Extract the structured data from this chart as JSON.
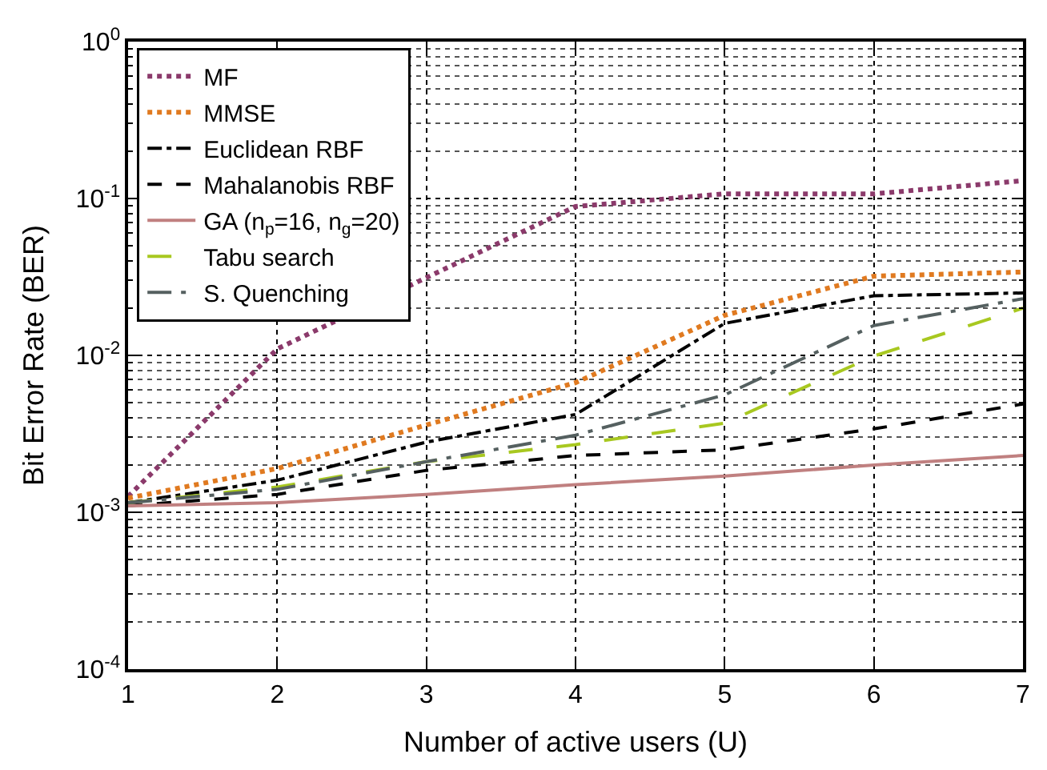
{
  "chart_data": {
    "type": "line",
    "xlabel": "Number of active users (U)",
    "ylabel": "Bit Error Rate (BER)",
    "x": [
      1,
      2,
      3,
      4,
      5,
      6,
      7
    ],
    "series": [
      {
        "name": "MF",
        "color": "#8b3a6b",
        "line_style": "dotted",
        "values": [
          0.00126,
          0.011,
          null,
          0.089,
          0.107,
          0.107,
          0.13
        ]
      },
      {
        "name": "MMSE",
        "color": "#e07a20",
        "line_style": "dotted",
        "values": [
          0.00123,
          0.0019,
          0.0036,
          0.0067,
          0.018,
          0.032,
          0.034
        ]
      },
      {
        "name": "Euclidean RBF",
        "color": "#000000",
        "line_style": "dashdot",
        "values": [
          0.00115,
          0.0016,
          0.0028,
          0.0042,
          0.016,
          0.024,
          0.025
        ]
      },
      {
        "name": "Mahalanobis RBF",
        "color": "#000000",
        "line_style": "dashed",
        "values": [
          0.0011,
          0.0013,
          0.00185,
          0.0023,
          0.0025,
          0.0034,
          0.0049
        ]
      },
      {
        "name": "GA (n$_{p}$=16, n$_{g}$=20)",
        "color": "#c08080",
        "line_style": "solid",
        "values": [
          0.0011,
          0.00115,
          0.0013,
          0.0015,
          0.0017,
          0.002,
          0.0023
        ]
      },
      {
        "name": "Tabu search",
        "color": "#a8c820",
        "line_style": "longdash",
        "values": [
          0.00115,
          0.00145,
          0.0021,
          0.0027,
          0.0037,
          0.0099,
          0.02
        ]
      },
      {
        "name": "S. Quenching",
        "color": "#556060",
        "line_style": "longdashdot",
        "values": [
          0.00115,
          0.0014,
          0.0021,
          0.0031,
          0.0056,
          0.0155,
          0.023
        ]
      }
    ],
    "log": "y",
    "xlim": [
      1,
      7
    ],
    "xticks": [
      1,
      2,
      3,
      4,
      5,
      6,
      7
    ],
    "ylim": [
      0.0001,
      1
    ],
    "yticks": [
      {
        "value": 0.0001,
        "label": "10$^{-4}$"
      },
      {
        "value": 0.001,
        "label": "10$^{-3}$"
      },
      {
        "value": 0.01,
        "label": "10$^{-2}$"
      },
      {
        "value": 0.1,
        "label": "10$^{-1}$"
      },
      {
        "value": 1,
        "label": "10$^{0}$"
      }
    ],
    "grid": true,
    "legend": "top left",
    "marker": "none"
  }
}
